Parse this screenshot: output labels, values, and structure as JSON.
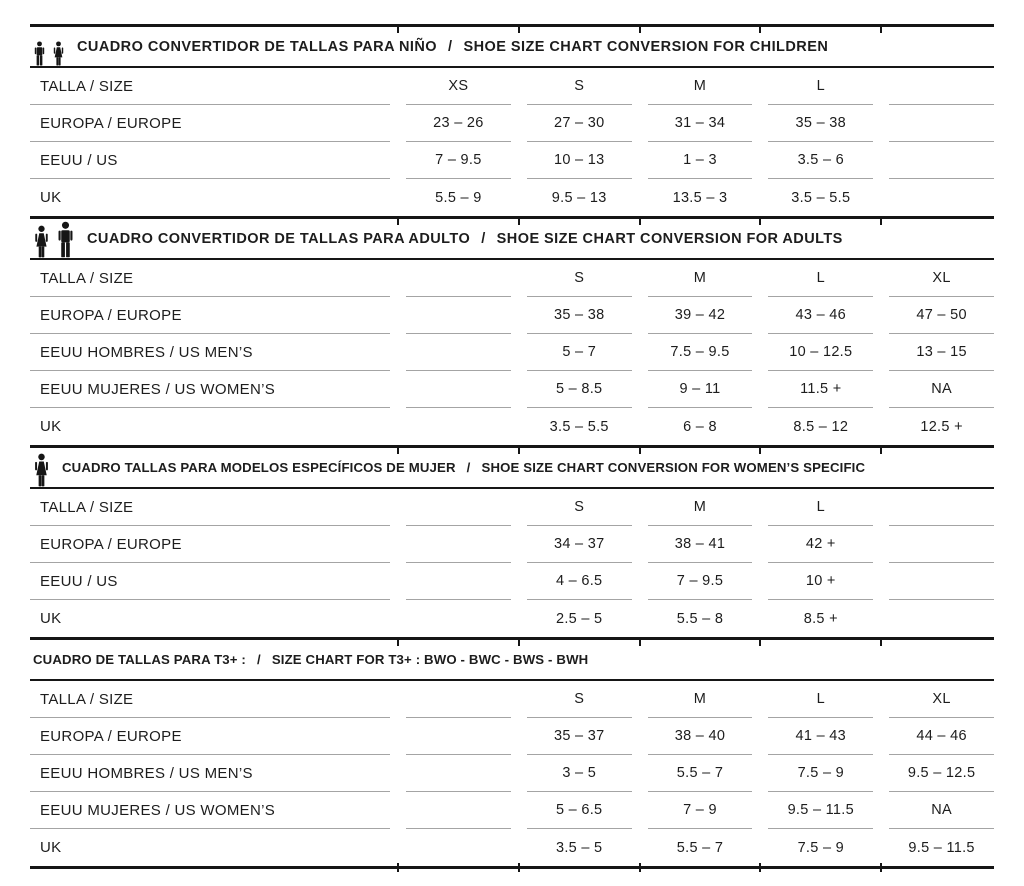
{
  "page": {
    "background": "#ffffff",
    "text_color": "#1d1d1d",
    "rule_color_thick": "#161616",
    "rule_color_thin": "#a4a4a4"
  },
  "sections": [
    {
      "id": "children",
      "icons": [
        "boy-icon",
        "girl-icon"
      ],
      "title_es": "CUADRO CONVERTIDOR DE TALLAS PARA NIÑO",
      "separator": "/",
      "title_en": "SHOE SIZE CHART CONVERSION FOR CHILDREN",
      "rows": [
        {
          "label": "TALLA / SIZE",
          "values": [
            "XS",
            "S",
            "M",
            "L",
            ""
          ]
        },
        {
          "label": "EUROPA / EUROPE",
          "values": [
            "23 – 26",
            "27 – 30",
            "31 – 34",
            "35 – 38",
            ""
          ]
        },
        {
          "label": "EEUU / US",
          "values": [
            "7 – 9.5",
            "10 – 13",
            "1 – 3",
            "3.5 – 6",
            ""
          ]
        },
        {
          "label": "UK",
          "values": [
            "5.5 – 9",
            "9.5 – 13",
            "13.5 – 3",
            "3.5 – 5.5",
            ""
          ]
        }
      ]
    },
    {
      "id": "adults",
      "icons": [
        "woman-icon",
        "man-icon"
      ],
      "title_es": "CUADRO CONVERTIDOR DE TALLAS PARA ADULTO",
      "separator": "/",
      "title_en": "SHOE SIZE CHART CONVERSION FOR ADULTS",
      "rows": [
        {
          "label": "TALLA / SIZE",
          "values": [
            "",
            "S",
            "M",
            "L",
            "XL"
          ]
        },
        {
          "label": "EUROPA / EUROPE",
          "values": [
            "",
            "35 – 38",
            "39 – 42",
            "43 – 46",
            "47 – 50"
          ]
        },
        {
          "label": "EEUU HOMBRES / US MEN’S",
          "values": [
            "",
            "5 – 7",
            "7.5 – 9.5",
            "10 – 12.5",
            "13 – 15"
          ]
        },
        {
          "label": "EEUU MUJERES / US WOMEN’S",
          "values": [
            "",
            "5 – 8.5",
            "9 – 11",
            "11.5 +",
            "NA"
          ]
        },
        {
          "label": "UK",
          "values": [
            "",
            "3.5 – 5.5",
            "6 – 8",
            "8.5 – 12",
            "12.5 +"
          ]
        }
      ]
    },
    {
      "id": "women-specific",
      "icons": [
        "woman-icon"
      ],
      "title_es": "CUADRO TALLAS PARA MODELOS ESPECÍFICOS DE MUJER",
      "separator": "/",
      "title_en": "SHOE SIZE CHART CONVERSION FOR WOMEN’S SPECIFIC",
      "rows": [
        {
          "label": "TALLA / SIZE",
          "values": [
            "",
            "S",
            "M",
            "L",
            ""
          ]
        },
        {
          "label": "EUROPA / EUROPE",
          "values": [
            "",
            "34 – 37",
            "38 – 41",
            "42 +",
            ""
          ]
        },
        {
          "label": "EEUU / US",
          "values": [
            "",
            "4 – 6.5",
            "7 – 9.5",
            "10 +",
            ""
          ]
        },
        {
          "label": "UK",
          "values": [
            "",
            "2.5 – 5",
            "5.5 – 8",
            "8.5 +",
            ""
          ]
        }
      ]
    },
    {
      "id": "t3-plus",
      "icons": [],
      "title_es": "CUADRO DE TALLAS PARA T3+ :",
      "separator": "/",
      "title_en": "SIZE CHART FOR T3+ :  BWO - BWC - BWS - BWH",
      "rows": [
        {
          "label": "TALLA / SIZE",
          "values": [
            "",
            "S",
            "M",
            "L",
            "XL"
          ]
        },
        {
          "label": "EUROPA / EUROPE",
          "values": [
            "",
            "35 – 37",
            "38 – 40",
            "41 – 43",
            "44 – 46"
          ]
        },
        {
          "label": "EEUU HOMBRES / US MEN’S",
          "values": [
            "",
            "3 – 5",
            "5.5 – 7",
            "7.5 – 9",
            "9.5 – 12.5"
          ]
        },
        {
          "label": "EEUU MUJERES / US WOMEN’S",
          "values": [
            "",
            "5 – 6.5",
            "7 – 9",
            "9.5 – 11.5",
            "NA"
          ]
        },
        {
          "label": "UK",
          "values": [
            "",
            "3.5 – 5",
            "5.5 – 7",
            "7.5 – 9",
            "9.5 – 11.5"
          ]
        }
      ]
    }
  ]
}
